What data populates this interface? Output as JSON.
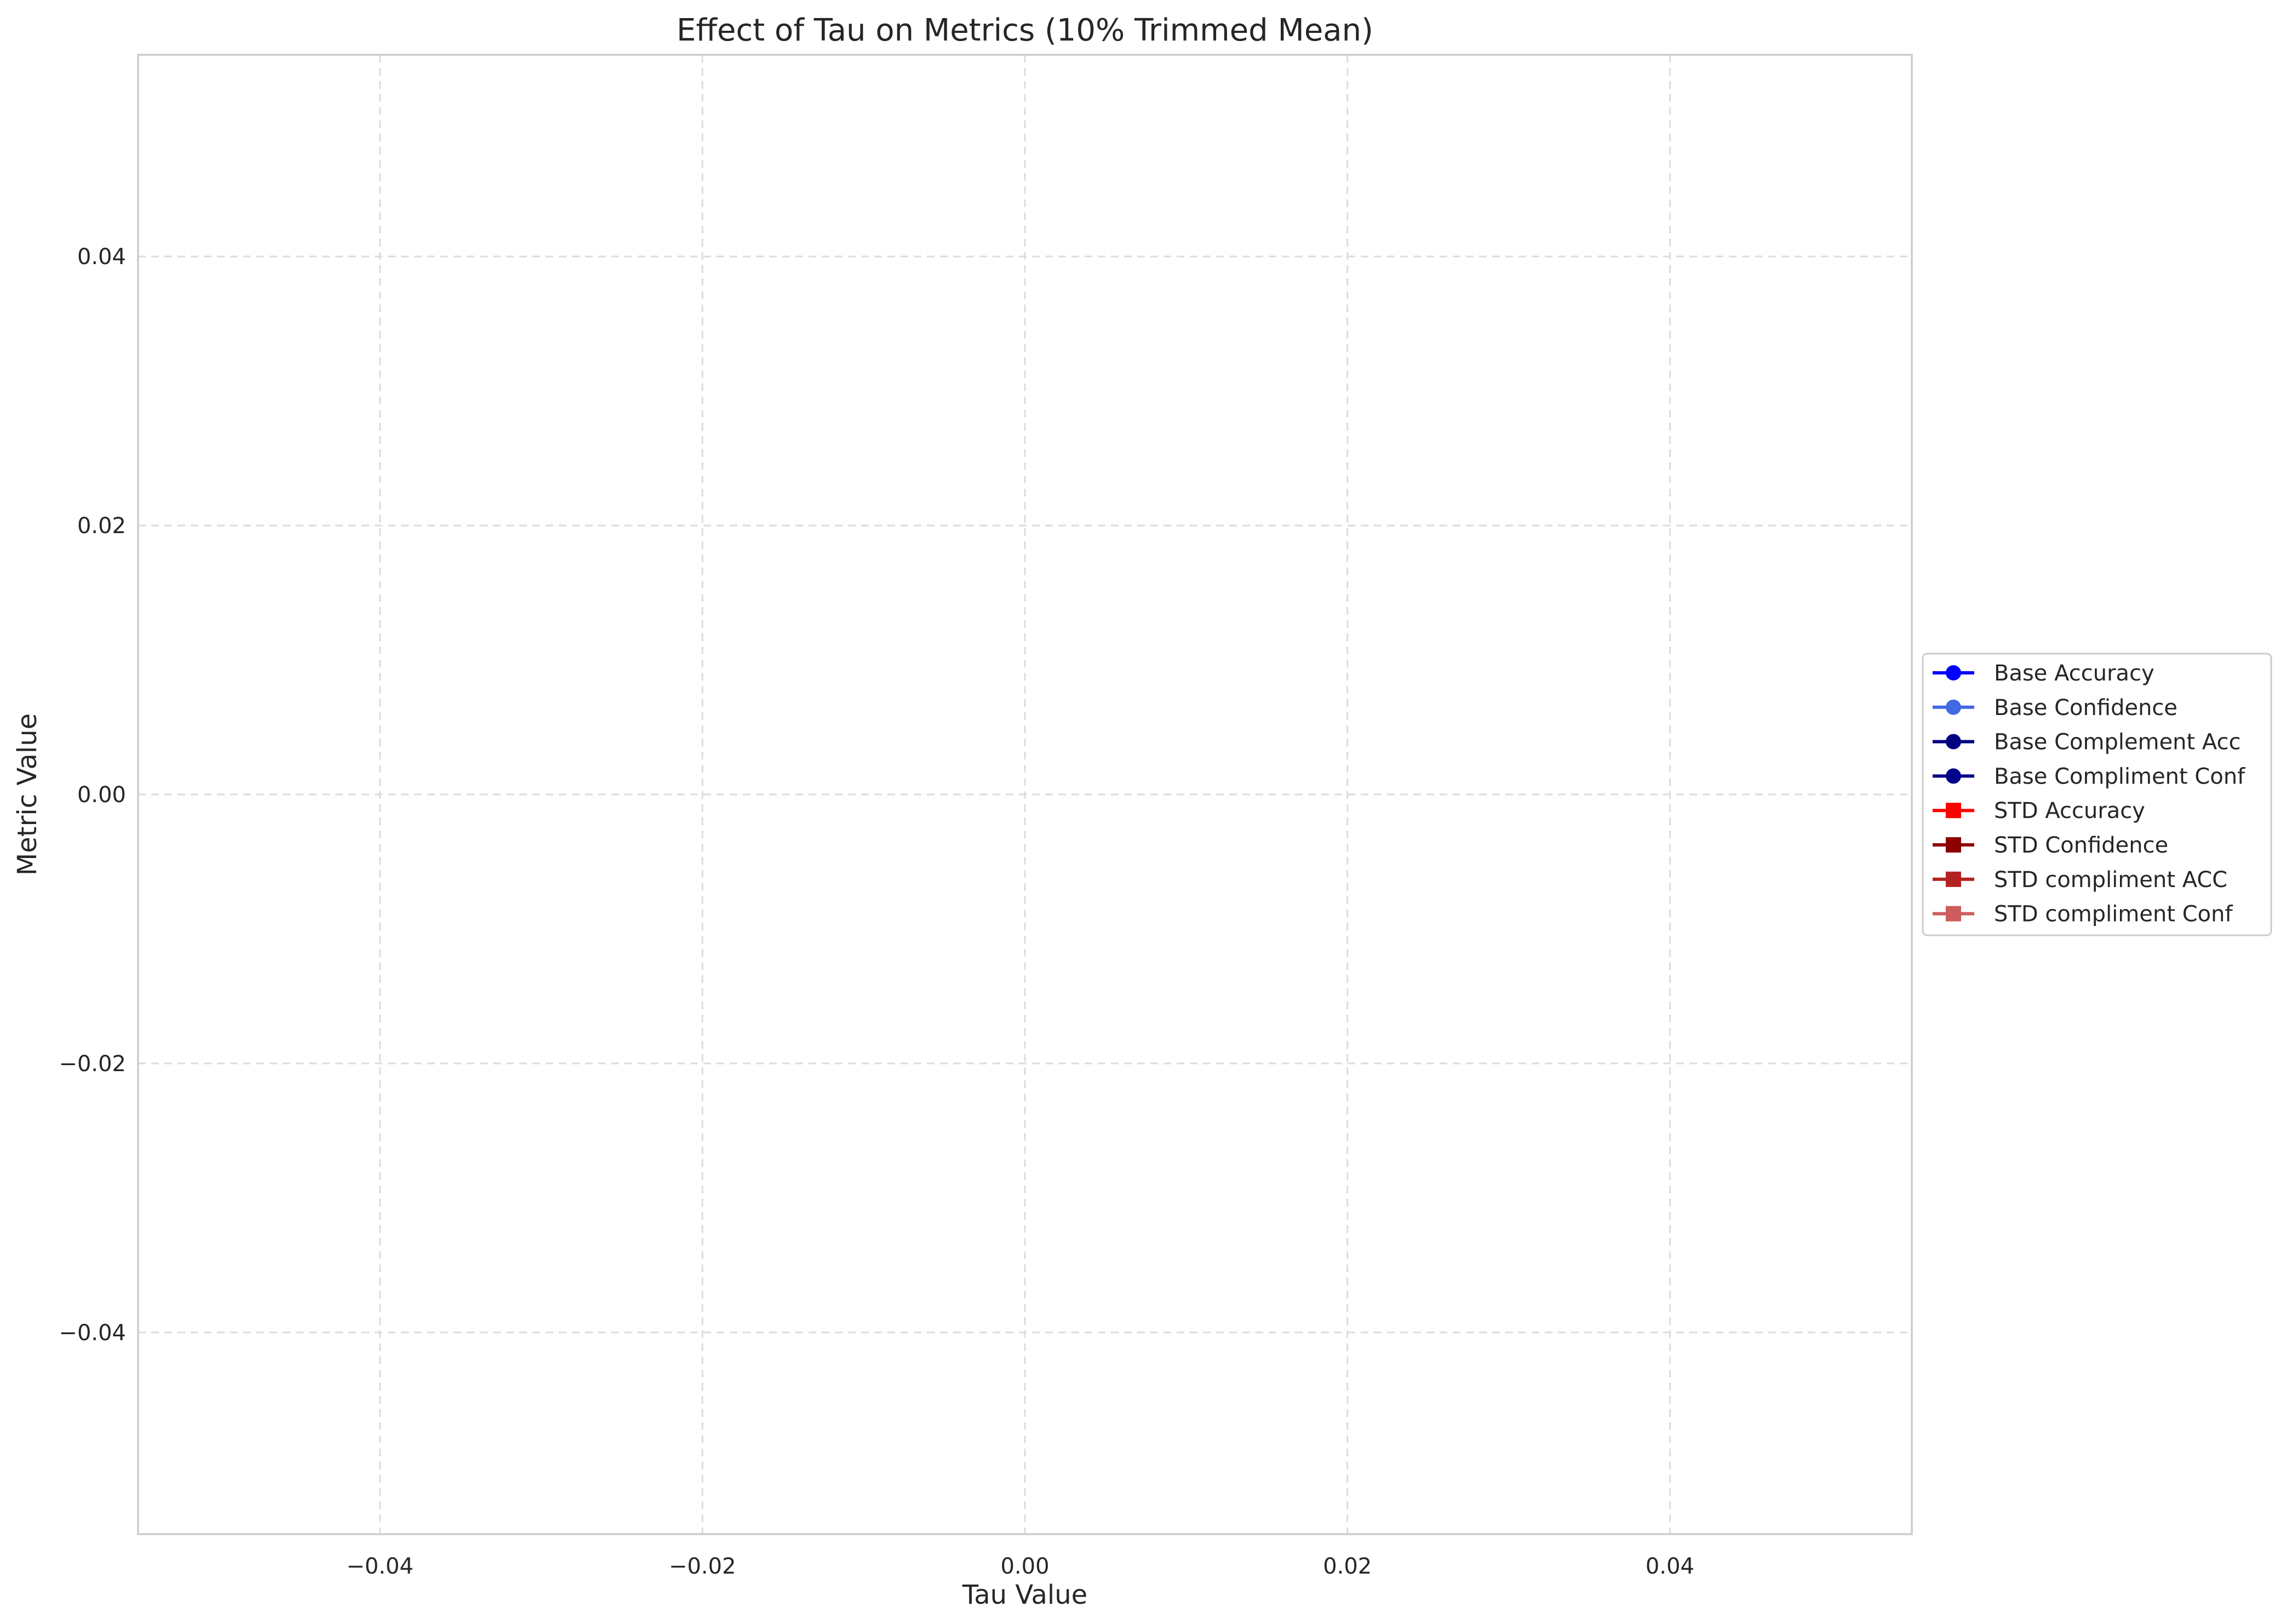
{
  "chart_data": {
    "type": "line",
    "title": "Effect of Tau on Metrics (10% Trimmed Mean)",
    "xlabel": "Tau Value",
    "ylabel": "Metric Value",
    "xlim": [
      -0.055,
      0.055
    ],
    "ylim": [
      -0.055,
      0.055
    ],
    "x_ticks": [
      -0.04,
      -0.02,
      0.0,
      0.02,
      0.04
    ],
    "x_tick_labels": [
      "−0.04",
      "−0.02",
      "0.00",
      "0.02",
      "0.04"
    ],
    "y_ticks": [
      -0.04,
      -0.02,
      0.0,
      0.02,
      0.04
    ],
    "y_tick_labels": [
      "−0.04",
      "−0.02",
      "0.00",
      "0.02",
      "0.04"
    ],
    "grid": true,
    "legend_position": "right, outside plot area, vertically centered",
    "series": [
      {
        "name": "Base Accuracy",
        "color": "#0000ff",
        "marker": "circle",
        "x": [],
        "values": []
      },
      {
        "name": "Base Confidence",
        "color": "#4169e1",
        "marker": "circle",
        "x": [],
        "values": []
      },
      {
        "name": "Base Complement Acc",
        "color": "#000080",
        "marker": "circle",
        "x": [],
        "values": []
      },
      {
        "name": "Base Compliment Conf",
        "color": "#00008b",
        "marker": "circle",
        "x": [],
        "values": []
      },
      {
        "name": "STD Accuracy",
        "color": "#ff0000",
        "marker": "square",
        "x": [],
        "values": []
      },
      {
        "name": "STD Confidence",
        "color": "#8b0000",
        "marker": "square",
        "x": [],
        "values": []
      },
      {
        "name": "STD compliment ACC",
        "color": "#b22222",
        "marker": "square",
        "x": [],
        "values": []
      },
      {
        "name": "STD compliment Conf",
        "color": "#cd5c5c",
        "marker": "square",
        "x": [],
        "values": []
      }
    ]
  }
}
